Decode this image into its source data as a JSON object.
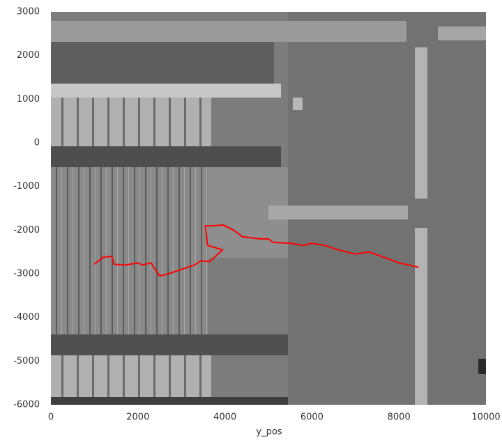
{
  "chart_data": {
    "type": "line",
    "x_label": "y_pos",
    "color": "#ff0000",
    "x": [
      1000,
      1200,
      1400,
      1450,
      1700,
      2000,
      2100,
      2300,
      2500,
      2700,
      3000,
      3300,
      3450,
      3650,
      3950,
      3600,
      3550,
      3750,
      3950,
      4200,
      4400,
      4800,
      5000,
      5100,
      5500,
      5800,
      6000,
      6300,
      6600,
      7000,
      7300,
      7600,
      8000,
      8450
    ],
    "values": [
      -2780,
      -2620,
      -2600,
      -2780,
      -2800,
      -2750,
      -2800,
      -2750,
      -3050,
      -3000,
      -2900,
      -2800,
      -2700,
      -2720,
      -2450,
      -2350,
      -1900,
      -1900,
      -1880,
      -2000,
      -2150,
      -2200,
      -2200,
      -2280,
      -2300,
      -2350,
      -2300,
      -2350,
      -2450,
      -2550,
      -2500,
      -2600,
      -2750,
      -2850
    ],
    "xlim": [
      0,
      10000
    ],
    "ylim": [
      -6000,
      3000
    ],
    "xticks": [
      0,
      2000,
      4000,
      6000,
      8000,
      10000
    ],
    "yticks": [
      -6000,
      -5000,
      -4000,
      -3000,
      -2000,
      -1000,
      0,
      1000,
      2000,
      3000
    ]
  }
}
